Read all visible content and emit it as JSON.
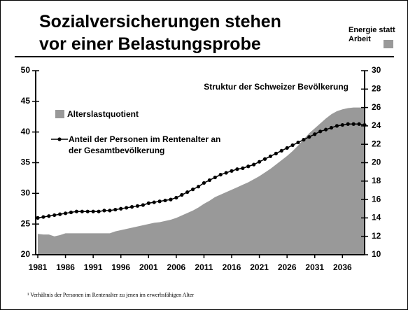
{
  "chart_data": {
    "type": "area-line",
    "title": [
      "Sozialversicherungen stehen",
      "vor einer Belastungsprobe"
    ],
    "logo": "Energie statt Arbeit",
    "annotation": "Struktur der Schweizer Bevölkerung",
    "footnote": "¹ Verhältnis der Personen im Rentenalter zu jenen im erwerbsfähigen Alter",
    "x": [
      1981,
      1982,
      1983,
      1984,
      1985,
      1986,
      1987,
      1988,
      1989,
      1990,
      1991,
      1992,
      1993,
      1994,
      1995,
      1996,
      1997,
      1998,
      1999,
      2000,
      2001,
      2002,
      2003,
      2004,
      2005,
      2006,
      2007,
      2008,
      2009,
      2010,
      2011,
      2012,
      2013,
      2014,
      2015,
      2016,
      2017,
      2018,
      2019,
      2020,
      2021,
      2022,
      2023,
      2024,
      2025,
      2026,
      2027,
      2028,
      2029,
      2030,
      2031,
      2032,
      2033,
      2034,
      2035,
      2036,
      2037,
      2038,
      2039,
      2040
    ],
    "series": [
      {
        "name": "Alterslastquotient",
        "color": "#999999",
        "kind": "area",
        "axis": "y",
        "values": [
          23.4,
          23.3,
          23.3,
          23.0,
          23.2,
          23.5,
          23.5,
          23.5,
          23.5,
          23.5,
          23.5,
          23.5,
          23.5,
          23.5,
          23.8,
          24.0,
          24.2,
          24.4,
          24.6,
          24.8,
          25.0,
          25.2,
          25.3,
          25.5,
          25.7,
          26.0,
          26.4,
          26.8,
          27.2,
          27.7,
          28.3,
          28.8,
          29.4,
          29.8,
          30.2,
          30.6,
          31.0,
          31.4,
          31.8,
          32.3,
          32.8,
          33.4,
          34.0,
          34.7,
          35.4,
          36.1,
          36.9,
          37.8,
          38.8,
          39.8,
          40.6,
          41.4,
          42.2,
          42.9,
          43.4,
          43.7,
          43.9,
          44.0,
          44.0,
          44.0
        ]
      },
      {
        "name": "Anteil der Personen im Rentenalter an der Gesamtbevölkerung",
        "color": "#000000",
        "kind": "line",
        "axis": "y2",
        "values": [
          14.0,
          14.1,
          14.2,
          14.3,
          14.4,
          14.5,
          14.6,
          14.7,
          14.7,
          14.7,
          14.7,
          14.7,
          14.8,
          14.8,
          14.9,
          15.0,
          15.1,
          15.2,
          15.3,
          15.4,
          15.6,
          15.7,
          15.8,
          15.9,
          16.0,
          16.2,
          16.5,
          16.8,
          17.1,
          17.4,
          17.8,
          18.1,
          18.4,
          18.7,
          18.9,
          19.1,
          19.3,
          19.4,
          19.6,
          19.8,
          20.1,
          20.4,
          20.7,
          21.0,
          21.3,
          21.6,
          21.9,
          22.2,
          22.5,
          22.8,
          23.1,
          23.4,
          23.6,
          23.8,
          24.0,
          24.1,
          24.2,
          24.2,
          24.2,
          24.1
        ]
      }
    ],
    "xlim": [
      1981,
      2040
    ],
    "xticks": [
      1981,
      1986,
      1991,
      1996,
      2001,
      2006,
      2011,
      2016,
      2021,
      2026,
      2031,
      2036
    ],
    "ylim": [
      20,
      50
    ],
    "yticks": [
      20,
      25,
      30,
      35,
      40,
      45,
      50
    ],
    "y2lim": [
      10,
      30
    ],
    "y2ticks": [
      10,
      12,
      14,
      16,
      18,
      20,
      22,
      24,
      26,
      28,
      30
    ]
  }
}
